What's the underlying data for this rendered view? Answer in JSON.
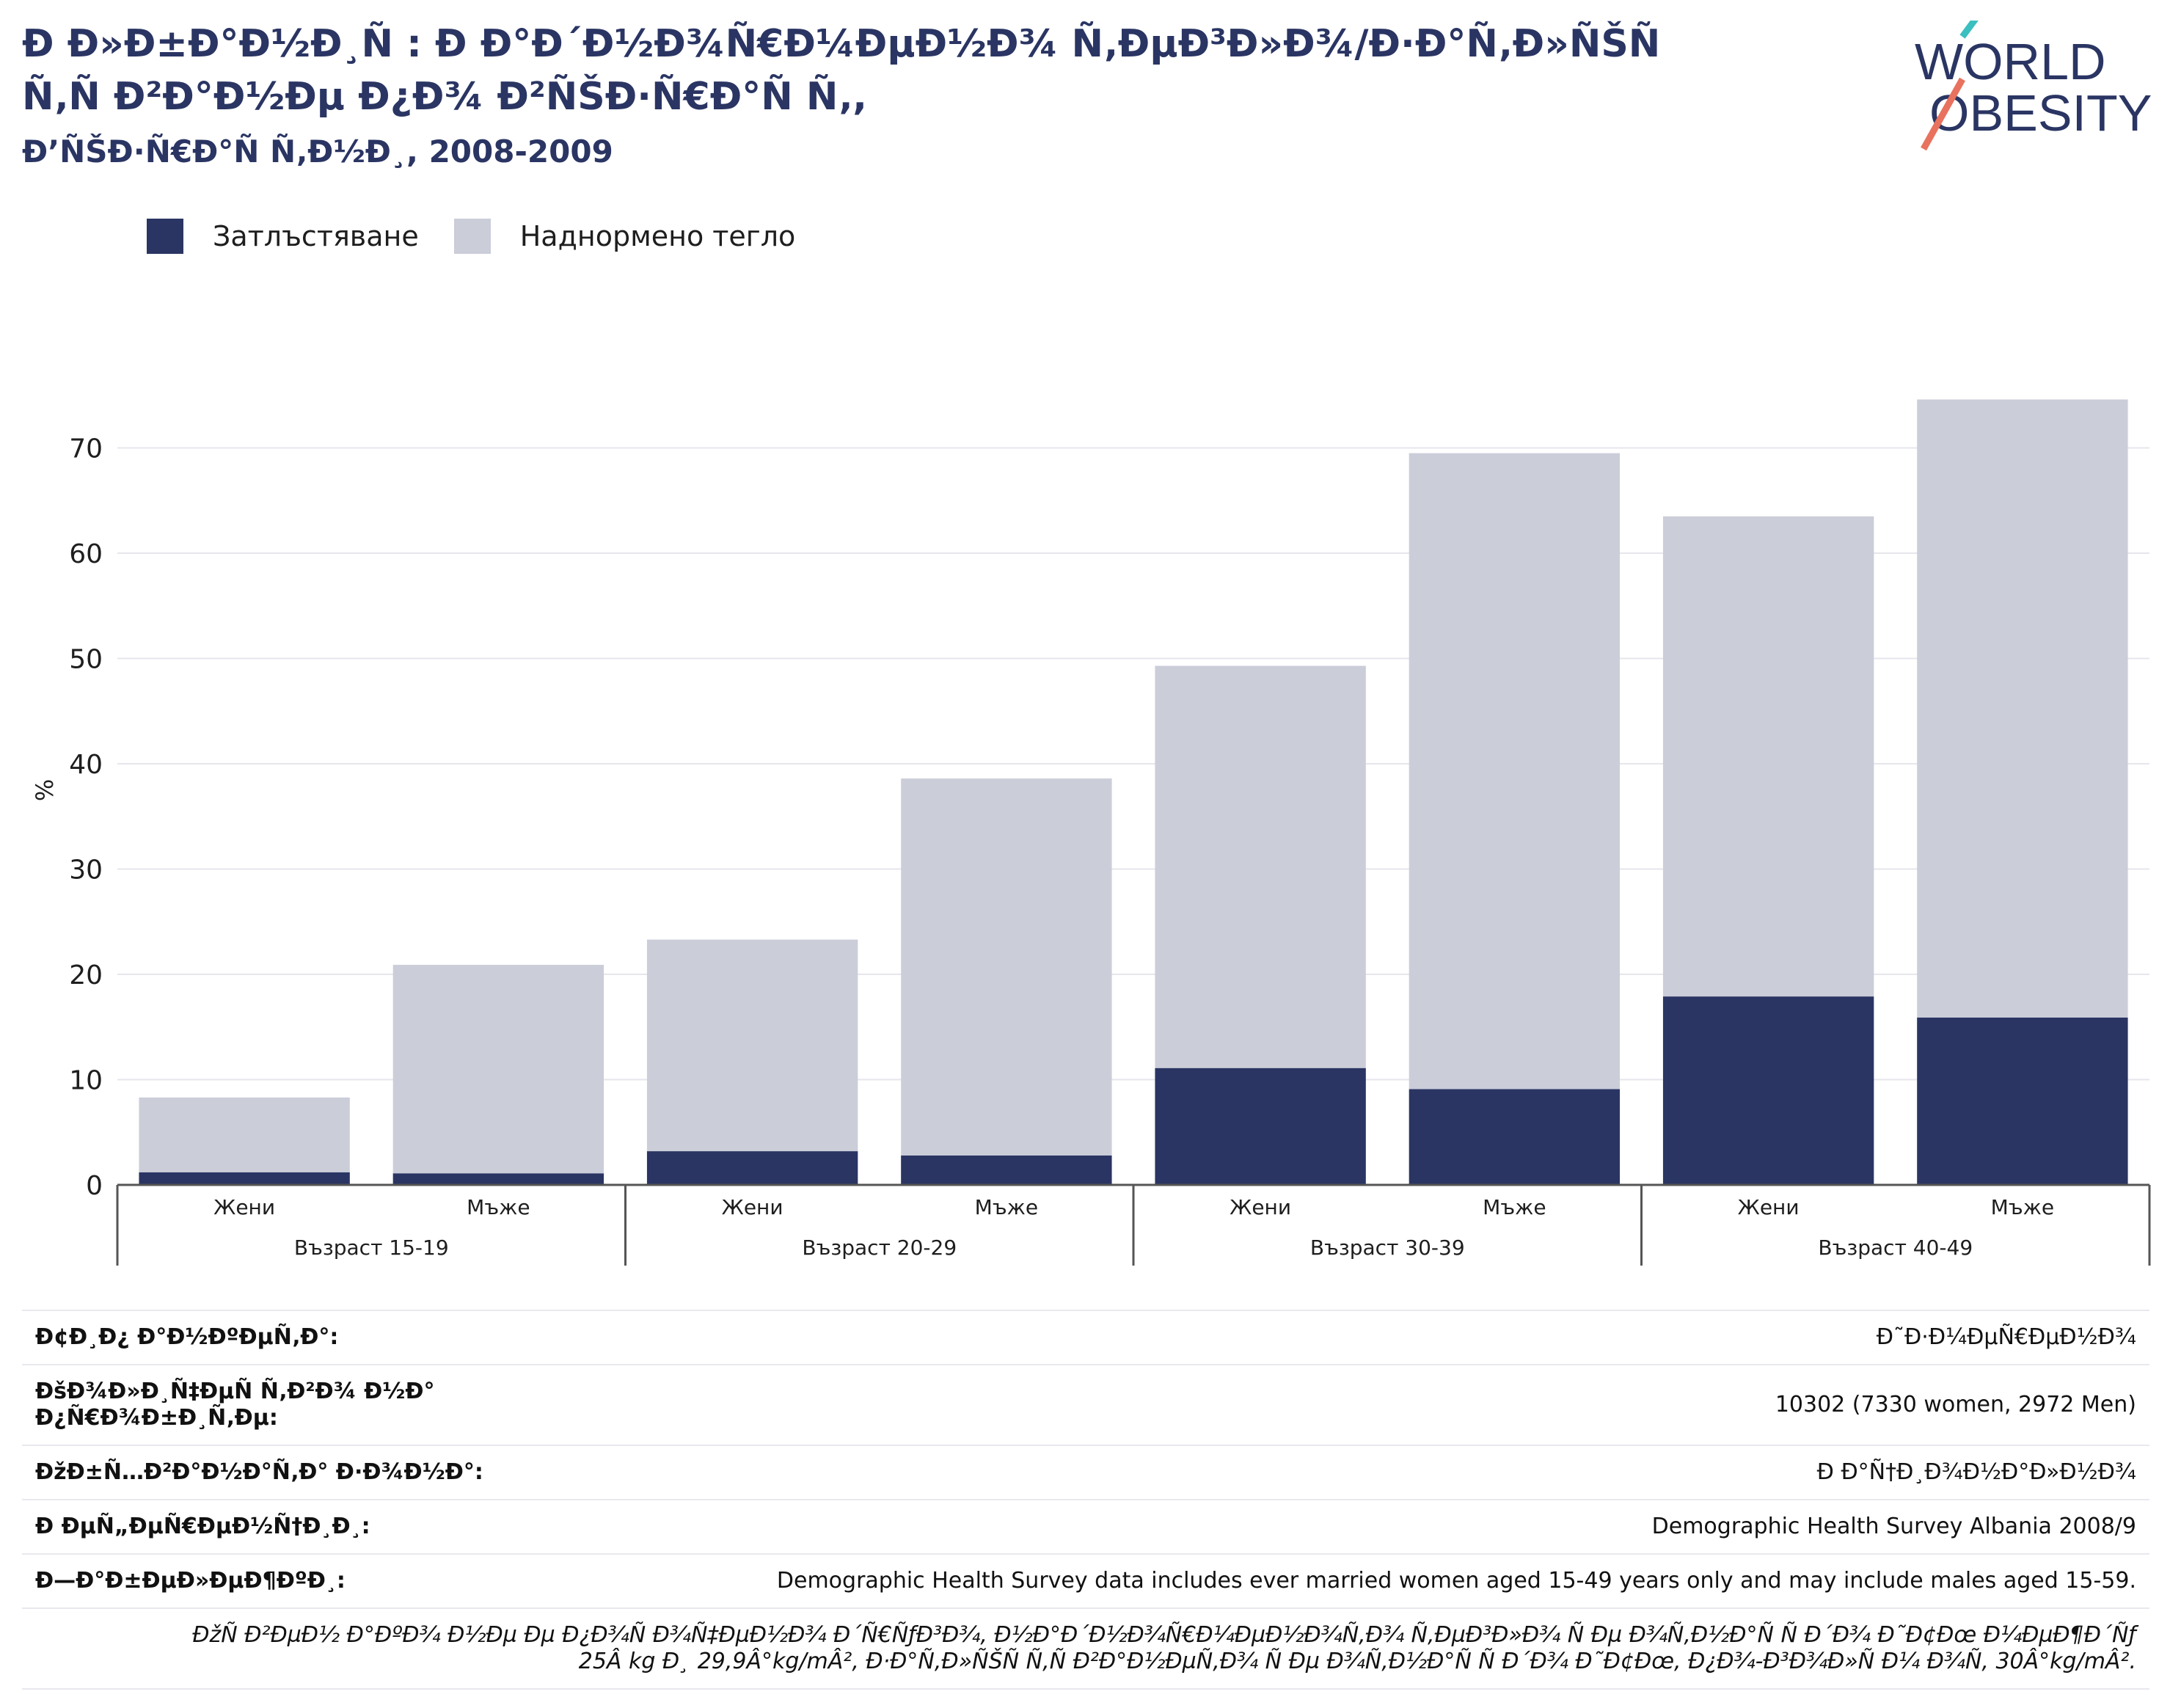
{
  "header": {
    "title": "Ð Ð»Ð±Ð°Ð½Ð¸Ñ : Ð Ð°Ð´Ð½Ð¾Ñ€Ð¼ÐµÐ½Ð¾ Ñ‚ÐµÐ³Ð»Ð¾/Ð·Ð°Ñ‚Ð»ÑŠÑ Ñ‚Ñ Ð²Ð°Ð½Ðµ Ð¿Ð¾ Ð²ÑŠÐ·Ñ€Ð°Ñ Ñ‚,",
    "subtitle": "Ð’ÑŠÐ·Ñ€Ð°Ñ Ñ‚Ð½Ð¸, 2008-2009"
  },
  "logo": {
    "line1": "WORLD",
    "line2": "OBESITY"
  },
  "colors": {
    "obesity": "#2a3563",
    "overweight": "#cbcdd9",
    "accent_teal": "#3bbfbf",
    "accent_coral": "#e8725e"
  },
  "chart_data": {
    "type": "bar",
    "stacked": true,
    "ylabel": "%",
    "ylim": [
      0,
      75
    ],
    "yticks": [
      0,
      10,
      20,
      30,
      40,
      50,
      60,
      70
    ],
    "grid": true,
    "legend_position": "top-left",
    "categories": [
      "Жени",
      "Мъже",
      "Жени",
      "Мъже",
      "Жени",
      "Мъже",
      "Жени",
      "Мъже"
    ],
    "groups": [
      {
        "label": "Възраст 15-19"
      },
      {
        "label": "Възраст 20-29"
      },
      {
        "label": "Възраст 30-39"
      },
      {
        "label": "Възраст 40-49"
      }
    ],
    "series": [
      {
        "name": "Затлъстяване",
        "values": [
          1.2,
          1.1,
          3.2,
          2.8,
          11.1,
          9.1,
          17.9,
          15.9
        ]
      },
      {
        "name": "Наднормено тегло",
        "values": [
          7.1,
          19.8,
          20.1,
          35.8,
          38.2,
          60.4,
          45.6,
          58.7
        ]
      }
    ]
  },
  "meta": [
    {
      "key": "Ð¢Ð¸Ð¿ Ð°Ð½ÐºÐµÑ‚Ð°:",
      "value": "Ð˜Ð·Ð¼ÐµÑ€ÐµÐ½Ð¾"
    },
    {
      "key": "ÐšÐ¾Ð»Ð¸Ñ‡ÐµÑ Ñ‚Ð²Ð¾ Ð½Ð° Ð¿Ñ€Ð¾Ð±Ð¸Ñ‚Ðµ:",
      "value": "10302 (7330 women, 2972 Men)"
    },
    {
      "key": "ÐžÐ±Ñ…Ð²Ð°Ð½Ð°Ñ‚Ð° Ð·Ð¾Ð½Ð°:",
      "value": "Ð Ð°Ñ†Ð¸Ð¾Ð½Ð°Ð»Ð½Ð¾"
    },
    {
      "key": "Ð ÐµÑ„ÐµÑ€ÐµÐ½Ñ†Ð¸Ð¸:",
      "value": "Demographic Health Survey Albania 2008/9"
    },
    {
      "key": "Ð—Ð°Ð±ÐµÐ»ÐµÐ¶ÐºÐ¸:",
      "value": "Demographic Health Survey data includes ever married women aged 15-49 years only and may include males aged 15-59."
    }
  ],
  "footnote": {
    "line1": "ÐžÑ Ð²ÐµÐ½ Ð°ÐºÐ¾ Ð½Ðµ Ðµ Ð¿Ð¾Ñ Ð¾Ñ‡ÐµÐ½Ð¾ Ð´Ñ€ÑƒÐ³Ð¾, Ð½Ð°Ð´Ð½Ð¾Ñ€Ð¼ÐµÐ½Ð¾Ñ‚Ð¾ Ñ‚ÐµÐ³Ð»Ð¾ Ñ Ðµ Ð¾Ñ‚Ð½Ð°Ñ Ñ  Ð´Ð¾ Ð˜Ð¢Ðœ Ð¼ÐµÐ¶Ð´Ñƒ",
    "line2": "25Â kg Ð¸ 29,9Â°kg/mÂ², Ð·Ð°Ñ‚Ð»ÑŠÑ Ñ‚Ñ Ð²Ð°Ð½ÐµÑ‚Ð¾ Ñ Ðµ Ð¾Ñ‚Ð½Ð°Ñ Ñ  Ð´Ð¾ Ð˜Ð¢Ðœ, Ð¿Ð¾-Ð³Ð¾Ð»Ñ Ð¼ Ð¾Ñ‚ 30Â°kg/mÂ²."
  }
}
